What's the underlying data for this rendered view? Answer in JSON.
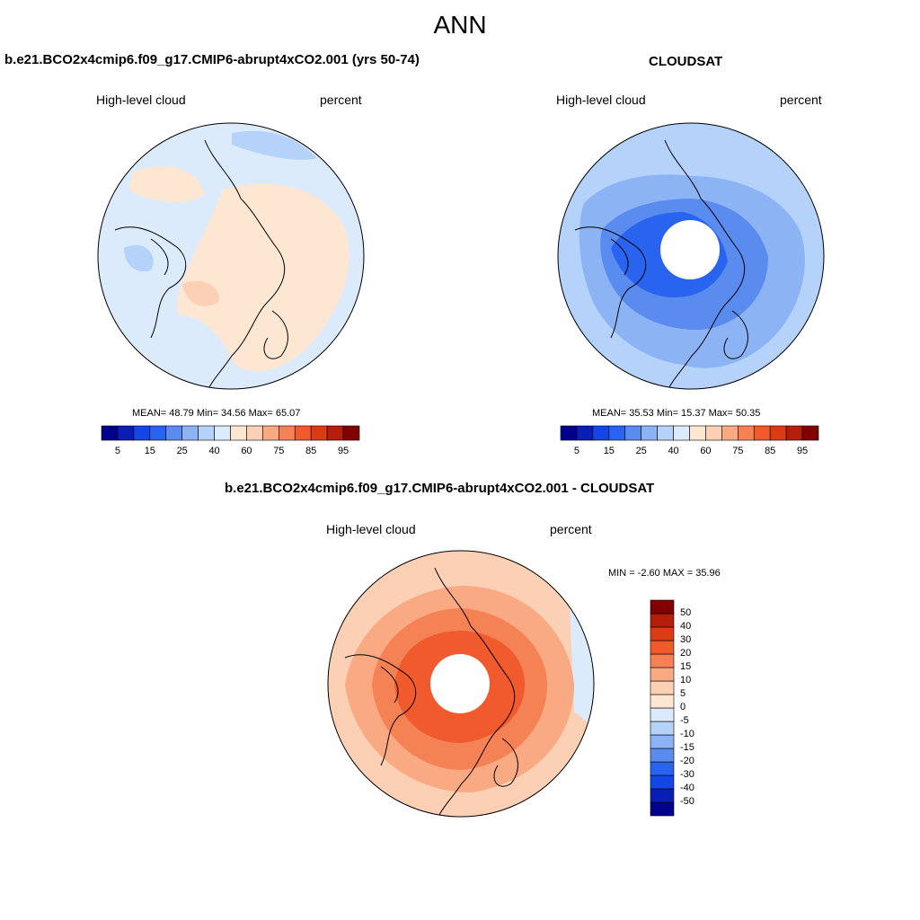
{
  "figure": {
    "title": "ANN"
  },
  "panels": [
    {
      "title": "b.e21.BCO2x4cmip6.f09_g17.CMIP6-abrupt4xCO2.001 (yrs 50-74)",
      "variable": "High-level cloud",
      "units": "percent",
      "stats": "MEAN=  48.79  Min=  34.56  Max=  65.07"
    },
    {
      "title": "CLOUDSAT",
      "variable": "High-level cloud",
      "units": "percent",
      "stats": "MEAN=  35.53  Min=  15.37  Max=  50.35"
    },
    {
      "title": "b.e21.BCO2x4cmip6.f09_g17.CMIP6-abrupt4xCO2.001 - CLOUDSAT",
      "variable": "High-level cloud",
      "units": "percent",
      "stats": "MIN =  -2.60 MAX =  35.96"
    }
  ],
  "colorbar_abs": {
    "colors": [
      "#00008c",
      "#0a1eb4",
      "#1446e6",
      "#2864f0",
      "#5a8cf0",
      "#8cb4f5",
      "#b4d2fa",
      "#dcebfc",
      "#fde6d2",
      "#fcd0b4",
      "#faaa82",
      "#f58255",
      "#f05a2d",
      "#dc3c14",
      "#b41e0a",
      "#820000"
    ],
    "ticks": [
      "5",
      "15",
      "25",
      "40",
      "60",
      "75",
      "85",
      "95"
    ]
  },
  "colorbar_diff": {
    "colors": [
      "#00008c",
      "#0a1eb4",
      "#1446e6",
      "#2864f0",
      "#5a8cf0",
      "#8cb4f5",
      "#b4d2fa",
      "#dcebfc",
      "#fde6d2",
      "#fcd0b4",
      "#faaa82",
      "#f58255",
      "#f05a2d",
      "#dc3c14",
      "#b41e0a",
      "#820000"
    ],
    "ticks": [
      "-50",
      "-40",
      "-30",
      "-20",
      "-15",
      "-10",
      "-5",
      "0",
      "5",
      "10",
      "15",
      "20",
      "30",
      "40",
      "50"
    ]
  }
}
